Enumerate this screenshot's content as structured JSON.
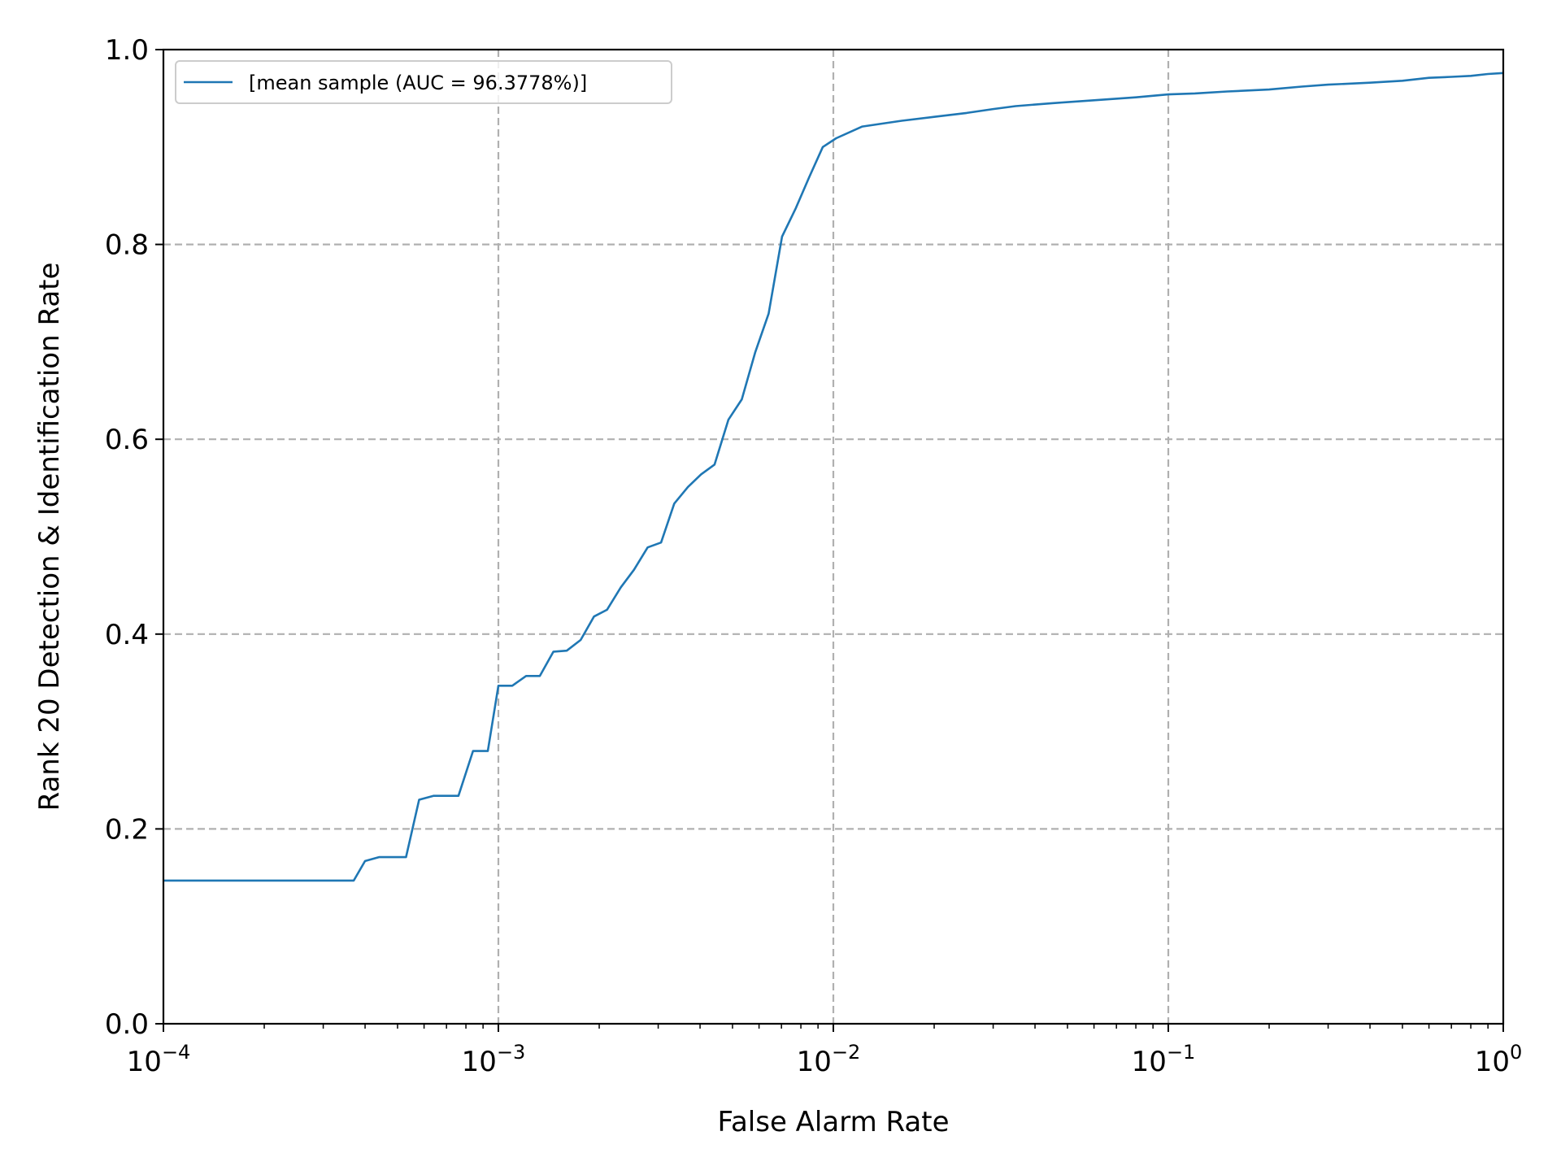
{
  "chart_data": {
    "type": "line",
    "xlabel": "False Alarm Rate",
    "ylabel": "Rank 20 Detection & Identification Rate",
    "xscale": "log",
    "xlim": [
      0.0001,
      1
    ],
    "ylim": [
      0.0,
      1.0
    ],
    "grid": true,
    "legend_position": "top-left",
    "x_ticks": [
      {
        "value": 0.0001,
        "base": "10",
        "exp": "−4"
      },
      {
        "value": 0.001,
        "base": "10",
        "exp": "−3"
      },
      {
        "value": 0.01,
        "base": "10",
        "exp": "−2"
      },
      {
        "value": 0.1,
        "base": "10",
        "exp": "−1"
      },
      {
        "value": 1,
        "base": "10",
        "exp": "0"
      }
    ],
    "y_ticks": [
      "0.0",
      "0.2",
      "0.4",
      "0.6",
      "0.8",
      "1.0"
    ],
    "series": [
      {
        "name": "[mean sample (AUC = 96.3778%)]",
        "color": "#1f77b4",
        "points": [
          [
            0.0001,
            0.147
          ],
          [
            0.00037,
            0.147
          ],
          [
            0.0004,
            0.167
          ],
          [
            0.00044,
            0.171
          ],
          [
            0.00053,
            0.171
          ],
          [
            0.00058,
            0.23
          ],
          [
            0.00064,
            0.234
          ],
          [
            0.00076,
            0.234
          ],
          [
            0.00084,
            0.28
          ],
          [
            0.00093,
            0.28
          ],
          [
            0.001,
            0.347
          ],
          [
            0.0011,
            0.347
          ],
          [
            0.00121,
            0.357
          ],
          [
            0.00133,
            0.357
          ],
          [
            0.00146,
            0.382
          ],
          [
            0.0016,
            0.383
          ],
          [
            0.00176,
            0.394
          ],
          [
            0.00193,
            0.418
          ],
          [
            0.00211,
            0.425
          ],
          [
            0.00232,
            0.448
          ],
          [
            0.00254,
            0.466
          ],
          [
            0.00279,
            0.489
          ],
          [
            0.00306,
            0.494
          ],
          [
            0.00335,
            0.534
          ],
          [
            0.00368,
            0.551
          ],
          [
            0.00403,
            0.564
          ],
          [
            0.00442,
            0.574
          ],
          [
            0.00486,
            0.62
          ],
          [
            0.00533,
            0.641
          ],
          [
            0.00584,
            0.689
          ],
          [
            0.00641,
            0.729
          ],
          [
            0.00703,
            0.808
          ],
          [
            0.00772,
            0.837
          ],
          [
            0.00847,
            0.869
          ],
          [
            0.0093,
            0.9
          ],
          [
            0.0102,
            0.909
          ],
          [
            0.0122,
            0.921
          ],
          [
            0.014,
            0.924
          ],
          [
            0.016,
            0.927
          ],
          [
            0.02,
            0.931
          ],
          [
            0.025,
            0.935
          ],
          [
            0.03,
            0.939
          ],
          [
            0.035,
            0.942
          ],
          [
            0.045,
            0.945
          ],
          [
            0.06,
            0.948
          ],
          [
            0.08,
            0.951
          ],
          [
            0.1,
            0.954
          ],
          [
            0.12,
            0.955
          ],
          [
            0.15,
            0.957
          ],
          [
            0.2,
            0.959
          ],
          [
            0.25,
            0.962
          ],
          [
            0.3,
            0.964
          ],
          [
            0.4,
            0.966
          ],
          [
            0.5,
            0.968
          ],
          [
            0.6,
            0.971
          ],
          [
            0.7,
            0.972
          ],
          [
            0.8,
            0.973
          ],
          [
            0.9,
            0.975
          ],
          [
            1.0,
            0.976
          ]
        ]
      }
    ]
  }
}
